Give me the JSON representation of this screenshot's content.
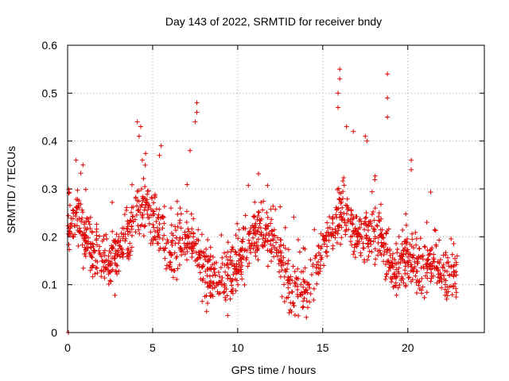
{
  "chart_data": {
    "type": "scatter",
    "title": "Day 143 of 2022, SRMTID for receiver bndy",
    "xlabel": "GPS time / hours",
    "ylabel": "SRMTID / TECUs",
    "xlim": [
      0,
      24.5
    ],
    "ylim": [
      0,
      0.6
    ],
    "xticks": [
      0,
      5,
      10,
      15,
      20
    ],
    "xtick_labels": [
      "0",
      "5",
      "10",
      "15",
      "20"
    ],
    "yticks": [
      0,
      0.1,
      0.2,
      0.3,
      0.4,
      0.5,
      0.6
    ],
    "ytick_labels": [
      "0",
      "0.1",
      "0.2",
      "0.3",
      "0.4",
      "0.5",
      "0.6"
    ],
    "grid": true,
    "marker": "plus",
    "color": "#e00000",
    "envelope": {
      "description": "approximate running median of SRMTID vs GPS time (hours)",
      "x": [
        0,
        0.5,
        1,
        1.5,
        2,
        2.5,
        3,
        3.5,
        4,
        4.5,
        5,
        5.5,
        6,
        6.5,
        7,
        7.5,
        8,
        8.5,
        9,
        9.5,
        10,
        10.5,
        11,
        11.5,
        12,
        12.5,
        13,
        13.5,
        14,
        14.5,
        15,
        15.5,
        16,
        16.5,
        17,
        17.5,
        18,
        18.5,
        19,
        19.5,
        20,
        20.5,
        21,
        21.5,
        22,
        22.5,
        22.9
      ],
      "y": [
        0.22,
        0.25,
        0.2,
        0.18,
        0.16,
        0.14,
        0.17,
        0.2,
        0.25,
        0.27,
        0.24,
        0.22,
        0.18,
        0.17,
        0.19,
        0.18,
        0.13,
        0.12,
        0.11,
        0.13,
        0.14,
        0.18,
        0.2,
        0.21,
        0.2,
        0.16,
        0.1,
        0.09,
        0.09,
        0.12,
        0.18,
        0.22,
        0.25,
        0.24,
        0.2,
        0.18,
        0.22,
        0.19,
        0.12,
        0.13,
        0.17,
        0.14,
        0.13,
        0.16,
        0.12,
        0.12,
        0.12
      ]
    },
    "spread": 0.055,
    "n_points": 1500,
    "spikes": [
      {
        "x": 0.5,
        "y": 0.36
      },
      {
        "x": 0.9,
        "y": 0.35
      },
      {
        "x": 4.1,
        "y": 0.44
      },
      {
        "x": 4.3,
        "y": 0.43
      },
      {
        "x": 4.2,
        "y": 0.41
      },
      {
        "x": 5.5,
        "y": 0.39
      },
      {
        "x": 5.4,
        "y": 0.37
      },
      {
        "x": 7.6,
        "y": 0.48
      },
      {
        "x": 7.6,
        "y": 0.46
      },
      {
        "x": 7.5,
        "y": 0.44
      },
      {
        "x": 7.2,
        "y": 0.38
      },
      {
        "x": 16.0,
        "y": 0.55
      },
      {
        "x": 16.0,
        "y": 0.53
      },
      {
        "x": 15.9,
        "y": 0.5
      },
      {
        "x": 15.9,
        "y": 0.47
      },
      {
        "x": 16.4,
        "y": 0.43
      },
      {
        "x": 16.8,
        "y": 0.42
      },
      {
        "x": 17.5,
        "y": 0.41
      },
      {
        "x": 17.6,
        "y": 0.4
      },
      {
        "x": 18.8,
        "y": 0.54
      },
      {
        "x": 18.8,
        "y": 0.49
      },
      {
        "x": 18.8,
        "y": 0.45
      },
      {
        "x": 20.2,
        "y": 0.36
      },
      {
        "x": 20.2,
        "y": 0.34
      },
      {
        "x": 0.05,
        "y": 0.0
      }
    ]
  }
}
